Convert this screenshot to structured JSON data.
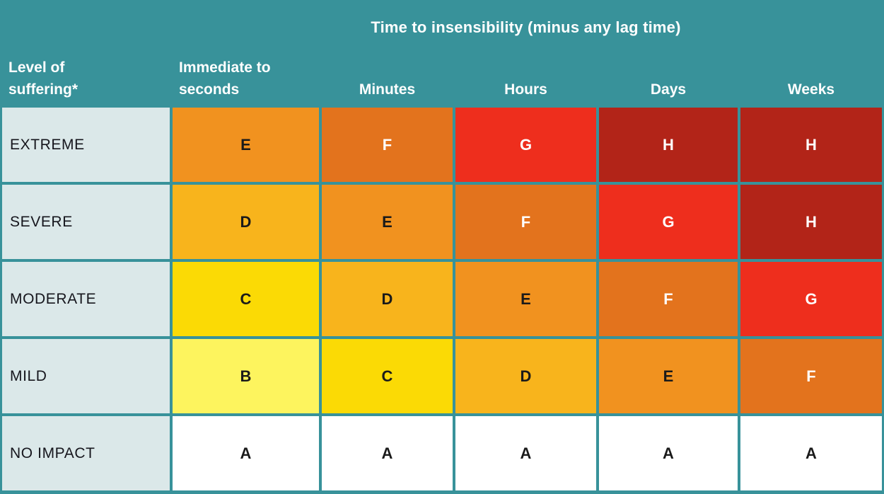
{
  "header": {
    "title": "Time to insensibility (minus any lag time)",
    "row_axis_label": "Level of\nsuffering*",
    "columns": [
      "Immediate to\nseconds",
      "Minutes",
      "Hours",
      "Days",
      "Weeks"
    ]
  },
  "rows": [
    {
      "label": "EXTREME",
      "grades": [
        "E",
        "F",
        "G",
        "H",
        "H"
      ]
    },
    {
      "label": "SEVERE",
      "grades": [
        "D",
        "E",
        "F",
        "G",
        "H"
      ]
    },
    {
      "label": "MODERATE",
      "grades": [
        "C",
        "D",
        "E",
        "F",
        "G"
      ]
    },
    {
      "label": "MILD",
      "grades": [
        "B",
        "C",
        "D",
        "E",
        "F"
      ]
    },
    {
      "label": "NO IMPACT",
      "grades": [
        "A",
        "A",
        "A",
        "A",
        "A"
      ]
    }
  ],
  "grade_colors": {
    "A": {
      "bg": "#ffffff",
      "fg": "#1a1a1a"
    },
    "B": {
      "bg": "#fdf45e",
      "fg": "#1a1a1a"
    },
    "C": {
      "bg": "#fbda05",
      "fg": "#1a1a1a"
    },
    "D": {
      "bg": "#f8b41c",
      "fg": "#1a1a1a"
    },
    "E": {
      "bg": "#f1921f",
      "fg": "#1a1a1a"
    },
    "F": {
      "bg": "#e3731d",
      "fg": "#ffffff"
    },
    "G": {
      "bg": "#ee2e1d",
      "fg": "#ffffff"
    },
    "H": {
      "bg": "#b22418",
      "fg": "#ffffff"
    }
  },
  "colors": {
    "teal": "#38929a",
    "label_bg": "#dbe8e9",
    "dark_text": "#16161d",
    "light_text": "#ffffff"
  },
  "chart_data": {
    "type": "heatmap",
    "title": "Time to insensibility (minus any lag time)",
    "row_axis_label": "Level of suffering*",
    "columns": [
      "Immediate to seconds",
      "Minutes",
      "Hours",
      "Days",
      "Weeks"
    ],
    "rows": [
      "EXTREME",
      "SEVERE",
      "MODERATE",
      "MILD",
      "NO IMPACT"
    ],
    "values": [
      [
        "E",
        "F",
        "G",
        "H",
        "H"
      ],
      [
        "D",
        "E",
        "F",
        "G",
        "H"
      ],
      [
        "C",
        "D",
        "E",
        "F",
        "G"
      ],
      [
        "B",
        "C",
        "D",
        "E",
        "F"
      ],
      [
        "A",
        "A",
        "A",
        "A",
        "A"
      ]
    ],
    "scale_order": [
      "A",
      "B",
      "C",
      "D",
      "E",
      "F",
      "G",
      "H"
    ],
    "scale_colors": [
      "#ffffff",
      "#fdf45e",
      "#fbda05",
      "#f8b41c",
      "#f1921f",
      "#e3731d",
      "#ee2e1d",
      "#b22418"
    ],
    "legend_position": "none",
    "grid": true
  }
}
